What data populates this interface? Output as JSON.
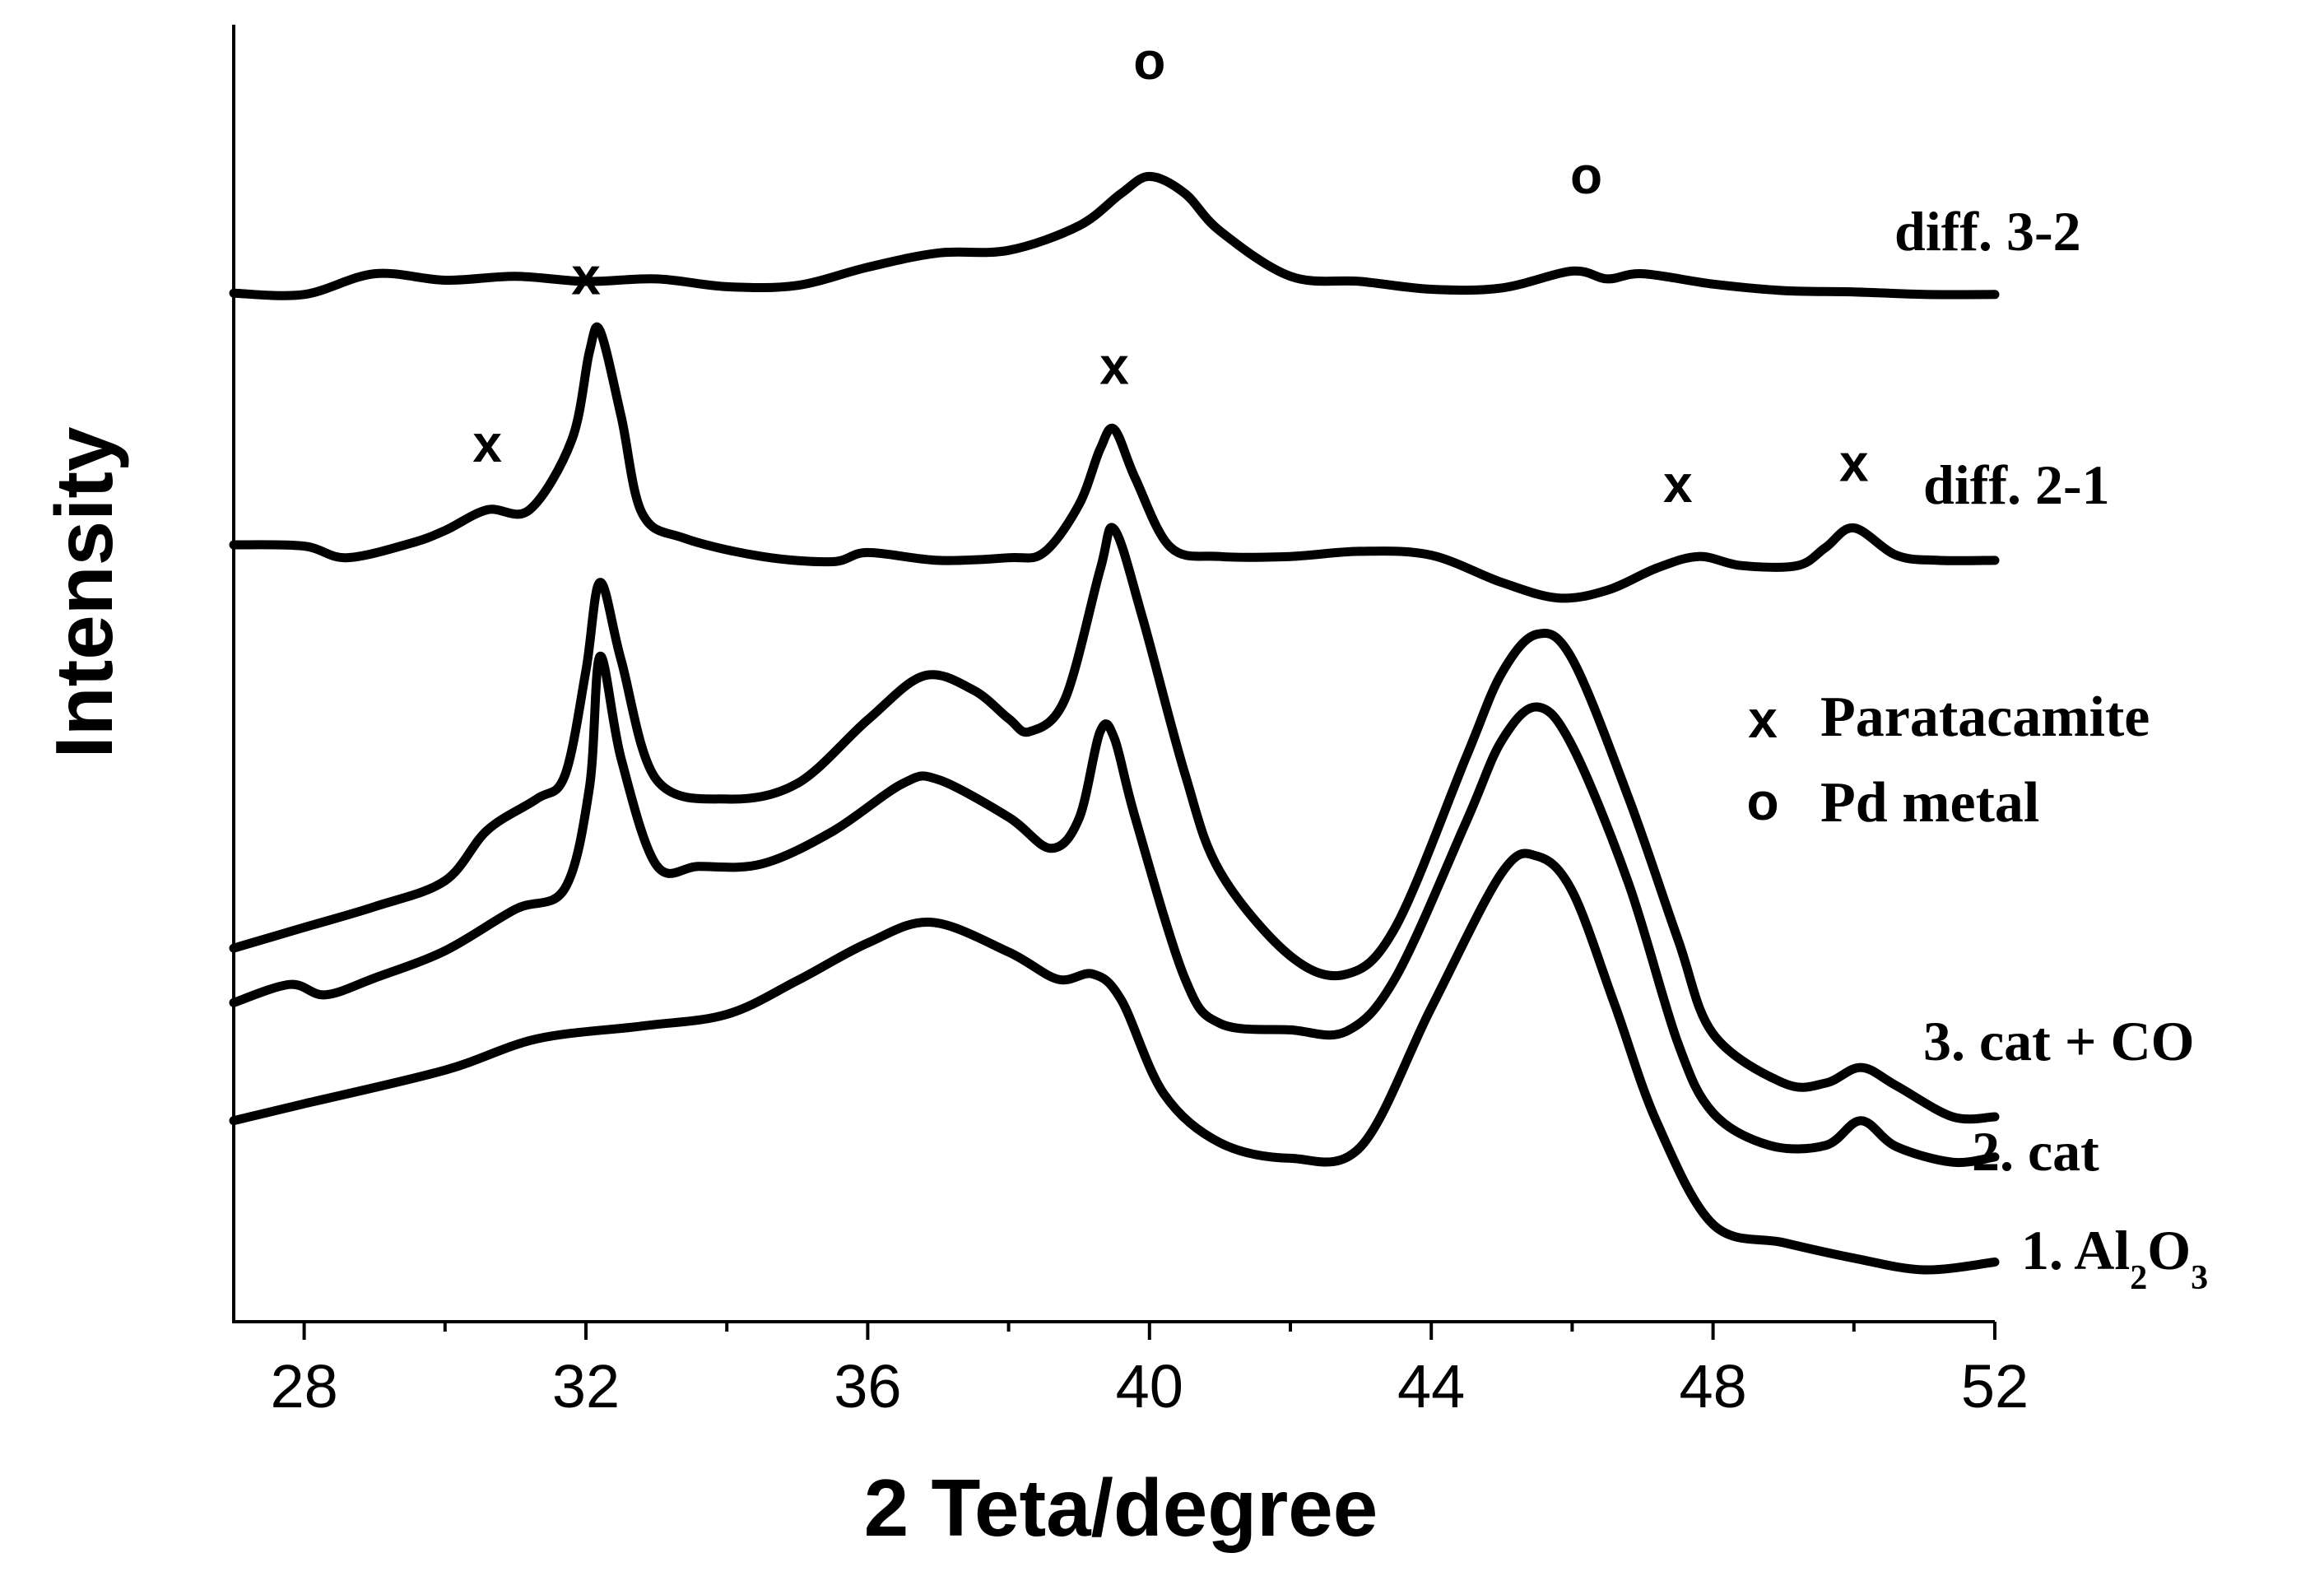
{
  "chart_data": {
    "type": "line",
    "xlabel": "2 Teta/degree",
    "ylabel": "Intensity",
    "xlim": [
      27,
      52
    ],
    "ylim": [
      0,
      100
    ],
    "xticks": [
      28,
      32,
      36,
      40,
      44,
      48,
      52
    ],
    "minor_xticks": [
      30,
      34,
      38,
      42,
      46,
      50
    ],
    "grid": false,
    "y_tick_labels": false,
    "series": [
      {
        "name": "1. Al2O3",
        "label_main": "1. Al",
        "label_sub1": "2",
        "label_mid": "O",
        "label_sub2": "3",
        "baseline": 15.5,
        "points": [
          [
            27,
            15.5
          ],
          [
            28,
            16.8
          ],
          [
            30,
            19.4
          ],
          [
            31.3,
            21.8
          ],
          [
            32.8,
            22.8
          ],
          [
            34,
            23.7
          ],
          [
            35,
            26.3
          ],
          [
            36,
            29.2
          ],
          [
            36.9,
            30.8
          ],
          [
            38,
            28.5
          ],
          [
            38.7,
            26.4
          ],
          [
            39.2,
            26.8
          ],
          [
            39.6,
            24.8
          ],
          [
            40.2,
            17.6
          ],
          [
            41,
            13.8
          ],
          [
            42,
            12.6
          ],
          [
            43,
            13.5
          ],
          [
            44,
            24.2
          ],
          [
            45,
            34.6
          ],
          [
            45.5,
            35.9
          ],
          [
            46,
            33.2
          ],
          [
            46.6,
            24.5
          ],
          [
            47.2,
            15.4
          ],
          [
            48,
            7.5
          ],
          [
            49,
            6.1
          ],
          [
            50,
            4.9
          ],
          [
            51,
            4.0
          ],
          [
            52,
            4.6
          ]
        ],
        "peaks": []
      },
      {
        "name": "2. cat",
        "label": "2. cat",
        "baseline": 24.6,
        "points": [
          [
            27,
            24.6
          ],
          [
            27.8,
            26.0
          ],
          [
            28.3,
            25.2
          ],
          [
            29,
            26.5
          ],
          [
            30,
            28.6
          ],
          [
            31,
            31.8
          ],
          [
            31.7,
            33.4
          ],
          [
            32.05,
            41.2
          ],
          [
            32.2,
            51.3
          ],
          [
            32.5,
            43.4
          ],
          [
            33,
            35.2
          ],
          [
            33.6,
            35.1
          ],
          [
            34.5,
            35.3
          ],
          [
            35.5,
            37.8
          ],
          [
            36.5,
            41.5
          ],
          [
            37,
            41.8
          ],
          [
            38,
            38.9
          ],
          [
            38.6,
            36.5
          ],
          [
            39.0,
            38.8
          ],
          [
            39.3,
            45.5
          ],
          [
            39.5,
            45.0
          ],
          [
            39.8,
            38.8
          ],
          [
            40.5,
            26.5
          ],
          [
            41,
            23.0
          ],
          [
            42,
            22.5
          ],
          [
            42.8,
            22.4
          ],
          [
            43.5,
            26.6
          ],
          [
            44.5,
            38.6
          ],
          [
            45,
            44.8
          ],
          [
            45.5,
            47.4
          ],
          [
            46,
            44.4
          ],
          [
            46.8,
            33.8
          ],
          [
            47.5,
            21.5
          ],
          [
            48,
            16.1
          ],
          [
            48.8,
            13.6
          ],
          [
            49.6,
            13.6
          ],
          [
            50.1,
            15.5
          ],
          [
            50.6,
            13.5
          ],
          [
            51.4,
            12.3
          ],
          [
            52,
            12.7
          ]
        ],
        "peaks": []
      },
      {
        "name": "3. cat + CO",
        "label": "3. cat + CO",
        "baseline": 28.8,
        "points": [
          [
            27,
            28.8
          ],
          [
            28,
            30.4
          ],
          [
            29,
            32.0
          ],
          [
            30,
            34.0
          ],
          [
            30.6,
            37.9
          ],
          [
            31.3,
            40.3
          ],
          [
            31.7,
            42.1
          ],
          [
            32.0,
            50.2
          ],
          [
            32.2,
            57.0
          ],
          [
            32.5,
            51.0
          ],
          [
            33,
            41.8
          ],
          [
            34,
            40.3
          ],
          [
            35,
            41.5
          ],
          [
            36,
            46.4
          ],
          [
            36.8,
            49.8
          ],
          [
            37.5,
            48.7
          ],
          [
            38,
            46.5
          ],
          [
            38.3,
            45.5
          ],
          [
            38.8,
            48.0
          ],
          [
            39.3,
            58.0
          ],
          [
            39.5,
            61.1
          ],
          [
            39.9,
            54.3
          ],
          [
            40.5,
            42.3
          ],
          [
            41,
            34.7
          ],
          [
            42,
            28.2
          ],
          [
            42.8,
            26.8
          ],
          [
            43.5,
            30.5
          ],
          [
            44.5,
            43.6
          ],
          [
            45,
            50.0
          ],
          [
            45.5,
            53.0
          ],
          [
            46,
            51.1
          ],
          [
            46.8,
            40.4
          ],
          [
            47.5,
            29.5
          ],
          [
            48,
            22.2
          ],
          [
            49,
            18.4
          ],
          [
            49.6,
            18.4
          ],
          [
            50.1,
            19.6
          ],
          [
            50.6,
            18.2
          ],
          [
            51.4,
            15.8
          ],
          [
            52,
            15.8
          ]
        ],
        "peaks": []
      },
      {
        "name": "diff. 2-1",
        "label": "diff. 2-1",
        "baseline": 59.9,
        "points": [
          [
            27,
            59.9
          ],
          [
            28,
            59.8
          ],
          [
            28.6,
            58.9
          ],
          [
            29.5,
            60.0
          ],
          [
            30,
            61.0
          ],
          [
            30.6,
            62.6
          ],
          [
            31.2,
            62.6
          ],
          [
            31.8,
            68.0
          ],
          [
            32.05,
            74.8
          ],
          [
            32.2,
            76.4
          ],
          [
            32.5,
            69.8
          ],
          [
            32.8,
            62.3
          ],
          [
            33.4,
            60.4
          ],
          [
            34.5,
            59.0
          ],
          [
            35.5,
            58.6
          ],
          [
            36,
            59.3
          ],
          [
            37,
            58.7
          ],
          [
            38,
            58.9
          ],
          [
            38.5,
            59.3
          ],
          [
            39.0,
            63.0
          ],
          [
            39.3,
            67.3
          ],
          [
            39.5,
            68.8
          ],
          [
            39.8,
            65.0
          ],
          [
            40.3,
            59.7
          ],
          [
            41,
            59.0
          ],
          [
            42,
            59.0
          ],
          [
            43,
            59.4
          ],
          [
            44,
            59.1
          ],
          [
            45,
            57.0
          ],
          [
            45.8,
            55.8
          ],
          [
            46.5,
            56.4
          ],
          [
            47.2,
            58.1
          ],
          [
            47.8,
            59.0
          ],
          [
            48.4,
            58.3
          ],
          [
            49.2,
            58.3
          ],
          [
            49.6,
            59.7
          ],
          [
            50,
            61.2
          ],
          [
            50.6,
            59.1
          ],
          [
            51.2,
            58.7
          ],
          [
            52,
            58.7
          ]
        ],
        "peaks": []
      },
      {
        "name": "diff. 3-2",
        "label": "diff. 3-2",
        "baseline": 79.3,
        "points": [
          [
            27,
            79.3
          ],
          [
            28,
            79.2
          ],
          [
            29,
            80.8
          ],
          [
            30,
            80.3
          ],
          [
            31,
            80.6
          ],
          [
            32,
            80.2
          ],
          [
            33,
            80.4
          ],
          [
            34,
            79.8
          ],
          [
            35,
            79.9
          ],
          [
            36,
            81.3
          ],
          [
            37,
            82.4
          ],
          [
            38,
            82.6
          ],
          [
            39,
            84.5
          ],
          [
            39.6,
            87.0
          ],
          [
            40,
            88.3
          ],
          [
            40.5,
            87.0
          ],
          [
            41,
            84.1
          ],
          [
            42,
            80.6
          ],
          [
            43,
            80.2
          ],
          [
            44,
            79.6
          ],
          [
            45,
            79.7
          ],
          [
            46,
            81.0
          ],
          [
            46.5,
            80.4
          ],
          [
            47,
            80.8
          ],
          [
            48,
            80.0
          ],
          [
            49,
            79.5
          ],
          [
            50,
            79.4
          ],
          [
            51,
            79.2
          ],
          [
            52,
            79.2
          ]
        ],
        "peaks": []
      }
    ],
    "markers": [
      {
        "symbol": "x",
        "x": 30.6,
        "y": 67.7
      },
      {
        "symbol": "x",
        "x": 32.0,
        "y": 80.6
      },
      {
        "symbol": "x",
        "x": 39.5,
        "y": 73.7
      },
      {
        "symbol": "x",
        "x": 47.5,
        "y": 64.6
      },
      {
        "symbol": "x",
        "x": 50.0,
        "y": 66.2
      },
      {
        "symbol": "o",
        "x": 40.0,
        "y": 97.2
      },
      {
        "symbol": "o",
        "x": 46.2,
        "y": 88.4
      }
    ],
    "legend": {
      "placement": "right",
      "entries": [
        {
          "symbol": "x",
          "label": "Paratacamite"
        },
        {
          "symbol": "o",
          "label": "Pd metal"
        }
      ]
    }
  }
}
